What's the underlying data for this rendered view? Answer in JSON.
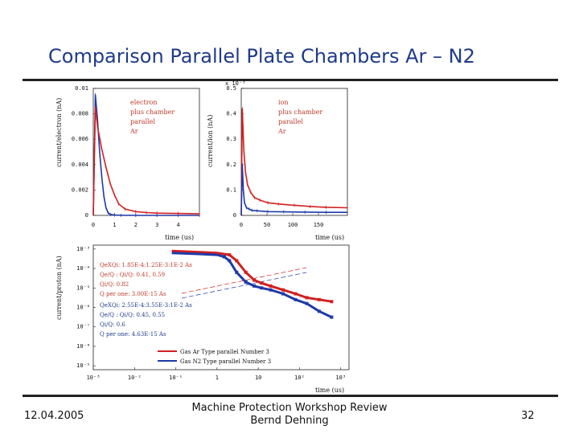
{
  "slide": {
    "title": "Comparison Parallel Plate Chambers Ar – N2",
    "date": "12.04.2005",
    "footer_line1": "Machine Protection Workshop Review",
    "footer_line2": "Bernd Dehning",
    "page": "32"
  },
  "chart_data": [
    {
      "type": "line",
      "panel": "electron",
      "ylabel": "current/electron (nA)",
      "xlabel": "time (us)",
      "xlim": [
        0,
        5
      ],
      "ylim": [
        0,
        0.01
      ],
      "xticks": [
        "0",
        "1",
        "2",
        "3",
        "4"
      ],
      "yticks": [
        "0",
        "0.002",
        "0.004",
        "0.006",
        "0.008",
        "0.01"
      ],
      "annotation": [
        "electron",
        "plus chamber",
        "parallel",
        "Ar"
      ],
      "series": [
        {
          "color": "#1f3aa8",
          "x": [
            0,
            0.1,
            0.2,
            0.3,
            0.4,
            0.5,
            0.6,
            0.7,
            0.8,
            1.0,
            1.3,
            2,
            3,
            4,
            5
          ],
          "y": [
            0,
            0.0095,
            0.0075,
            0.005,
            0.003,
            0.0015,
            0.0006,
            0.0002,
            8e-05,
            3e-05,
            1e-05,
            0,
            0,
            0,
            0
          ]
        },
        {
          "color": "#d22020",
          "x": [
            0,
            0.1,
            0.2,
            0.4,
            0.6,
            0.8,
            1.0,
            1.2,
            1.5,
            2,
            2.5,
            3,
            4,
            5
          ],
          "y": [
            0,
            0.0085,
            0.007,
            0.0052,
            0.0038,
            0.0025,
            0.0016,
            0.0009,
            0.0005,
            0.0003,
            0.00022,
            0.00018,
            0.00015,
            0.00012
          ]
        }
      ]
    },
    {
      "type": "line",
      "panel": "ion",
      "ylabel": "current/ion (nA)",
      "xlabel": "time (us)",
      "scale_label": "x 10⁻³",
      "xlim": [
        0,
        200
      ],
      "ylim": [
        0,
        0.5
      ],
      "xticks": [
        "0",
        "50",
        "100",
        "150"
      ],
      "yticks": [
        "0",
        "0.1",
        "0.2",
        "0.3",
        "0.4",
        "0.5"
      ],
      "annotation": [
        "ion",
        "plus chamber",
        "parallel",
        "Ar"
      ],
      "series": [
        {
          "color": "#d22020",
          "x": [
            0,
            2,
            5,
            8,
            12,
            18,
            25,
            35,
            50,
            70,
            100,
            130,
            160,
            200
          ],
          "y": [
            0,
            0.42,
            0.25,
            0.17,
            0.12,
            0.09,
            0.07,
            0.06,
            0.05,
            0.045,
            0.04,
            0.035,
            0.032,
            0.03
          ]
        },
        {
          "color": "#1f3aa8",
          "x": [
            0,
            2,
            4,
            6,
            10,
            15,
            20,
            30,
            50,
            80,
            120,
            160,
            200
          ],
          "y": [
            0,
            0.2,
            0.1,
            0.05,
            0.03,
            0.025,
            0.02,
            0.018,
            0.015,
            0.014,
            0.013,
            0.012,
            0.012
          ]
        }
      ]
    },
    {
      "type": "line",
      "panel": "comparison",
      "ylabel": "current/proton (nA)",
      "xlabel": "time (us)",
      "xscale": "log",
      "yscale": "log",
      "xticks": [
        "10⁻³",
        "10⁻²",
        "10⁻¹",
        "1",
        "10",
        "10²",
        "10³"
      ],
      "yticks": [
        "10⁻³",
        "10⁻⁴",
        "10⁻⁵",
        "10⁻⁶",
        "10⁻⁷",
        "10⁻⁸",
        "10⁻⁹"
      ],
      "legend_red": [
        "QeXQi: 1.85E-4:1.25E-3:1E-2 As",
        "Qe/Q : Qi/Q: 0.41, 0.59",
        "Qi/Q: 0.82",
        "Q per one: 3.00E-15 As"
      ],
      "legend_blue": [
        "QeXQi: 2.55E-4:3.55E-3:1E-2 As",
        "Qe/Q : Qi/Q: 0.45, 0.55",
        "Qi/Q: 0.6",
        "Q per one: 4.63E-15 As"
      ],
      "legend_keys": [
        "Gas Ar  Type parallel  Number 3",
        "Gas N2  Type parallel  Number 3"
      ],
      "series": [
        {
          "color": "#d22020",
          "x": [
            0.08,
            0.3,
            1,
            2,
            3,
            5,
            8,
            12,
            20,
            40,
            80,
            150,
            300,
            600
          ],
          "y": [
            -3.1,
            -3.15,
            -3.2,
            -3.3,
            -3.6,
            -4.2,
            -4.6,
            -4.75,
            -4.9,
            -5.1,
            -5.3,
            -5.5,
            -5.6,
            -5.7
          ]
        },
        {
          "color": "#1f3aa8",
          "x": [
            0.08,
            0.3,
            1,
            1.5,
            2,
            3,
            5,
            8,
            12,
            20,
            40,
            80,
            150,
            300,
            600
          ],
          "y": [
            -3.2,
            -3.25,
            -3.3,
            -3.4,
            -3.6,
            -4.2,
            -4.7,
            -4.9,
            -5.0,
            -5.1,
            -5.3,
            -5.6,
            -5.8,
            -6.2,
            -6.5
          ]
        }
      ]
    }
  ]
}
